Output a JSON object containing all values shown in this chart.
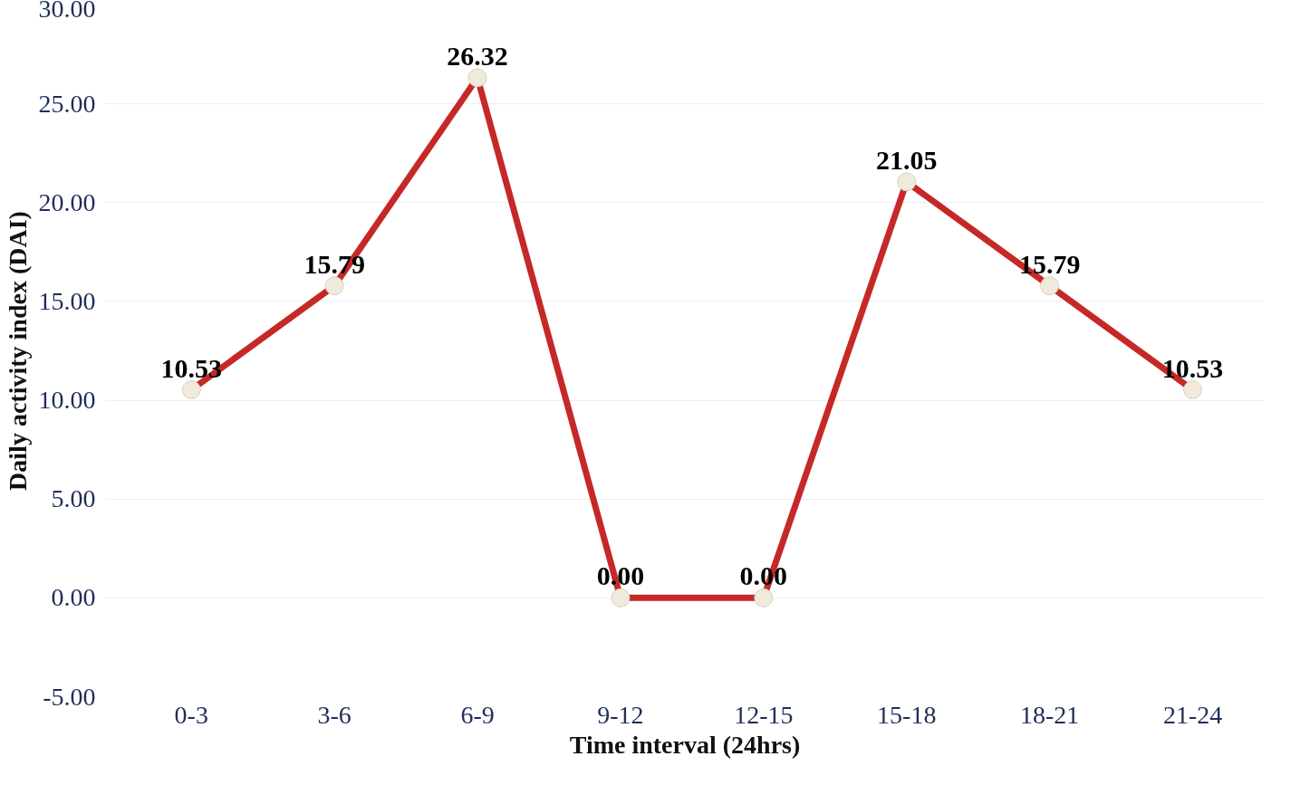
{
  "chart_data": {
    "type": "line",
    "xlabel": "Time interval (24hrs)",
    "ylabel": "Daily activity index (DAI)",
    "categories": [
      "0-3",
      "3-6",
      "6-9",
      "9-12",
      "12-15",
      "15-18",
      "18-21",
      "21-24"
    ],
    "series": [
      {
        "color": "#c62828",
        "values": [
          10.53,
          15.79,
          26.32,
          0.0,
          0.0,
          21.05,
          15.79,
          10.53
        ]
      }
    ],
    "value_labels": [
      "10.53",
      "15.79",
      "26.32",
      "0.00",
      "0.00",
      "21.05",
      "15.79",
      "10.53"
    ],
    "ylim": [
      -5,
      30
    ],
    "yticks": [
      {
        "value": -5,
        "label": "-5.00"
      },
      {
        "value": 0,
        "label": "0.00"
      },
      {
        "value": 5,
        "label": "5.00"
      },
      {
        "value": 10,
        "label": "10.00"
      },
      {
        "value": 15,
        "label": "15.00"
      },
      {
        "value": 20,
        "label": "20.00"
      },
      {
        "value": 25,
        "label": "25.00"
      },
      {
        "value": 30,
        "label": "30.00"
      }
    ],
    "grid": "y",
    "marker": "circle",
    "line_style": "solid"
  }
}
